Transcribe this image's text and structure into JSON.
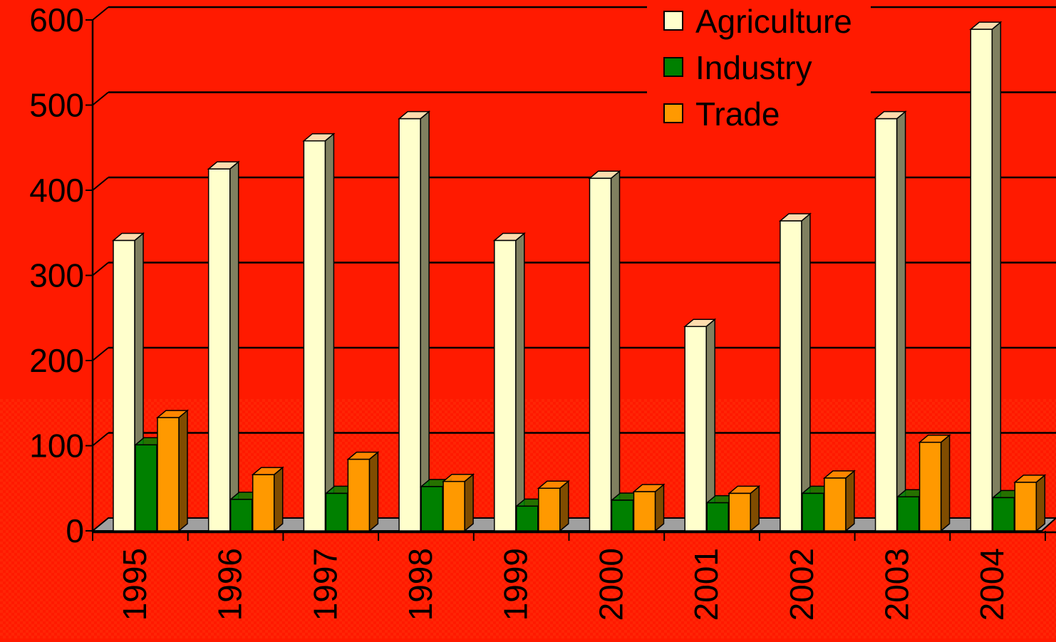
{
  "chart_data": {
    "type": "bar",
    "style": "3d-clustered-columns",
    "title": "",
    "xlabel": "",
    "ylabel": "",
    "ylim": [
      0,
      600
    ],
    "yticks": [
      0,
      100,
      200,
      300,
      400,
      500,
      600
    ],
    "grid": true,
    "legend_position": "top-right",
    "categories": [
      "1995",
      "1996",
      "1997",
      "1998",
      "1999",
      "2000",
      "2001",
      "2002",
      "2003",
      "2004"
    ],
    "series": [
      {
        "name": "Agriculture",
        "color": "#ffffcc",
        "side_color": "#808060",
        "values": [
          341,
          425,
          458,
          484,
          341,
          414,
          240,
          364,
          484,
          589
        ]
      },
      {
        "name": "Industry",
        "color": "#008000",
        "side_color": "#004000",
        "values": [
          101,
          37,
          44,
          52,
          29,
          36,
          33,
          44,
          40,
          39
        ]
      },
      {
        "name": "Trade",
        "color": "#ff9900",
        "side_color": "#804c00",
        "values": [
          133,
          66,
          84,
          58,
          50,
          46,
          44,
          62,
          104,
          57
        ]
      }
    ],
    "colors": {
      "background": "#ff1a00",
      "gridline": "#000000",
      "floor": "#a0a0a0"
    }
  }
}
